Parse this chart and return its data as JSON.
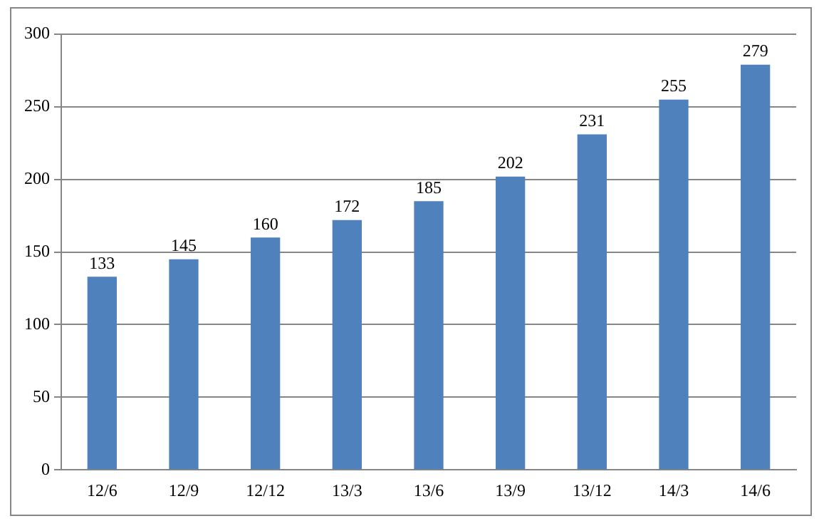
{
  "chart_data": {
    "type": "bar",
    "categories": [
      "12/6",
      "12/9",
      "12/12",
      "13/3",
      "13/6",
      "13/9",
      "13/12",
      "14/3",
      "14/6"
    ],
    "values": [
      133,
      145,
      160,
      172,
      185,
      202,
      231,
      255,
      279
    ],
    "color": "#4f81bd",
    "ylim": [
      0,
      300
    ],
    "yticks": [
      0,
      50,
      100,
      150,
      200,
      250,
      300
    ],
    "grid": "y",
    "data_labels": true,
    "legend": false
  }
}
